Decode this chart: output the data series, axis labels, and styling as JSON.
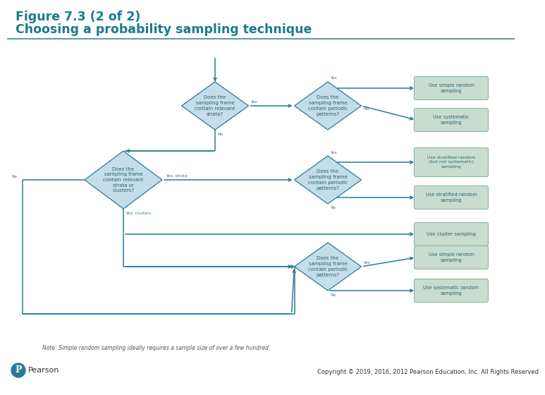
{
  "title_line1": "Figure 7.3 (2 of 2)",
  "title_line2": "Choosing a probability sampling technique",
  "title_color": "#1b7a8c",
  "bg_color": "#ffffff",
  "diamond_fill": "#c5dde8",
  "diamond_edge": "#2a7a9a",
  "rect_fill": "#c8ddd0",
  "rect_edge": "#8ab8a0",
  "arrow_color": "#2a7a9a",
  "text_color": "#2a5f70",
  "note_text": "Note: Simple random sampling ideally requires a sample size of over a few hundred",
  "copyright_text": "Copyright © 2019, 2016, 2012 Pearson Education, Inc. All Rights Reserved",
  "pearson_color": "#2a7a9a"
}
